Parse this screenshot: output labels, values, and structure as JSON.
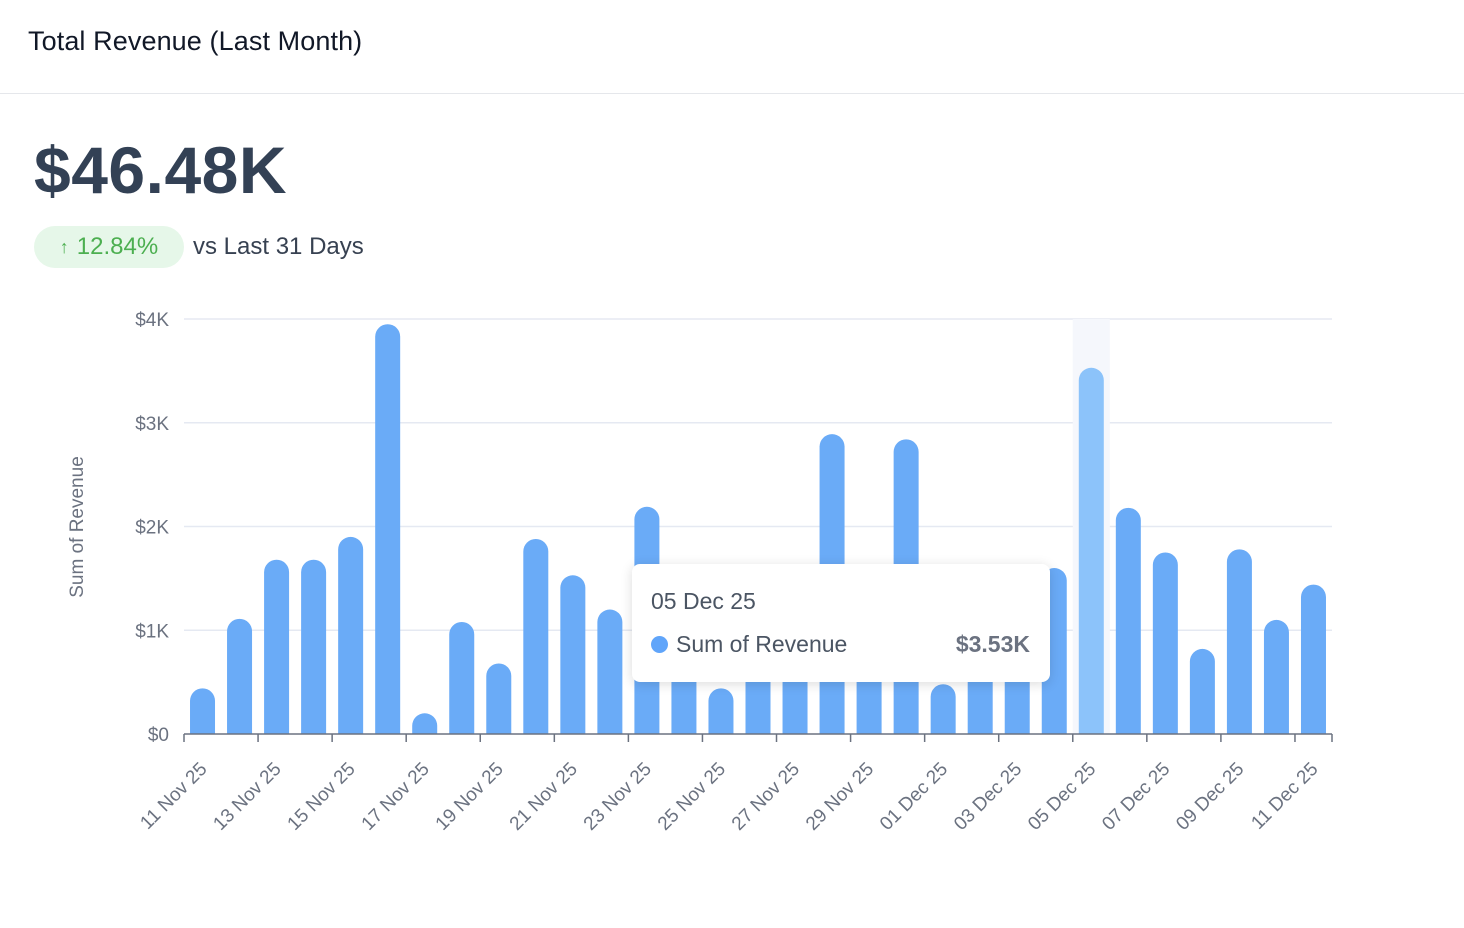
{
  "header": {
    "title": "Total Revenue (Last Month)"
  },
  "kpi": {
    "value": "$46.48K",
    "trend": {
      "direction": "up",
      "arrow": "↑",
      "percent": "12.84%",
      "caption": "vs Last 31 Days",
      "color": "#4caf50"
    }
  },
  "tooltip": {
    "date": "05 Dec 25",
    "series": "Sum of Revenue",
    "value": "$3.53K"
  },
  "chart_data": {
    "type": "bar",
    "title": "Total Revenue (Last Month)",
    "xlabel": "",
    "ylabel": "Sum of Revenue",
    "ylim": [
      0,
      4000
    ],
    "yticks": [
      0,
      1000,
      2000,
      3000,
      4000
    ],
    "ytick_labels": [
      "$0",
      "$1K",
      "$2K",
      "$3K",
      "$4K"
    ],
    "grid": true,
    "legend": "none",
    "bar_color": "#6aabf7",
    "highlight_color": "#8cc3fa",
    "highlight_index": 24,
    "categories": [
      "11 Nov 25",
      "12 Nov 25",
      "13 Nov 25",
      "14 Nov 25",
      "15 Nov 25",
      "16 Nov 25",
      "17 Nov 25",
      "18 Nov 25",
      "19 Nov 25",
      "20 Nov 25",
      "21 Nov 25",
      "22 Nov 25",
      "23 Nov 25",
      "24 Nov 25",
      "25 Nov 25",
      "26 Nov 25",
      "27 Nov 25",
      "28 Nov 25",
      "29 Nov 25",
      "30 Nov 25",
      "01 Dec 25",
      "02 Dec 25",
      "03 Dec 25",
      "04 Dec 25",
      "05 Dec 25",
      "06 Dec 25",
      "07 Dec 25",
      "08 Dec 25",
      "09 Dec 25",
      "10 Dec 25",
      "11 Dec 25"
    ],
    "xtick_labels": [
      "11 Nov 25",
      "13 Nov 25",
      "15 Nov 25",
      "17 Nov 25",
      "19 Nov 25",
      "21 Nov 25",
      "23 Nov 25",
      "25 Nov 25",
      "27 Nov 25",
      "29 Nov 25",
      "01 Dec 25",
      "03 Dec 25",
      "05 Dec 25",
      "07 Dec 25",
      "09 Dec 25",
      "11 Dec 25"
    ],
    "series": [
      {
        "name": "Sum of Revenue",
        "values": [
          440,
          1110,
          1680,
          1680,
          1900,
          3950,
          200,
          1080,
          680,
          1880,
          1530,
          1200,
          2190,
          1300,
          440,
          1200,
          1100,
          2890,
          1050,
          2840,
          480,
          900,
          700,
          1600,
          3530,
          2180,
          1750,
          820,
          1780,
          1100,
          1440
        ]
      }
    ]
  }
}
